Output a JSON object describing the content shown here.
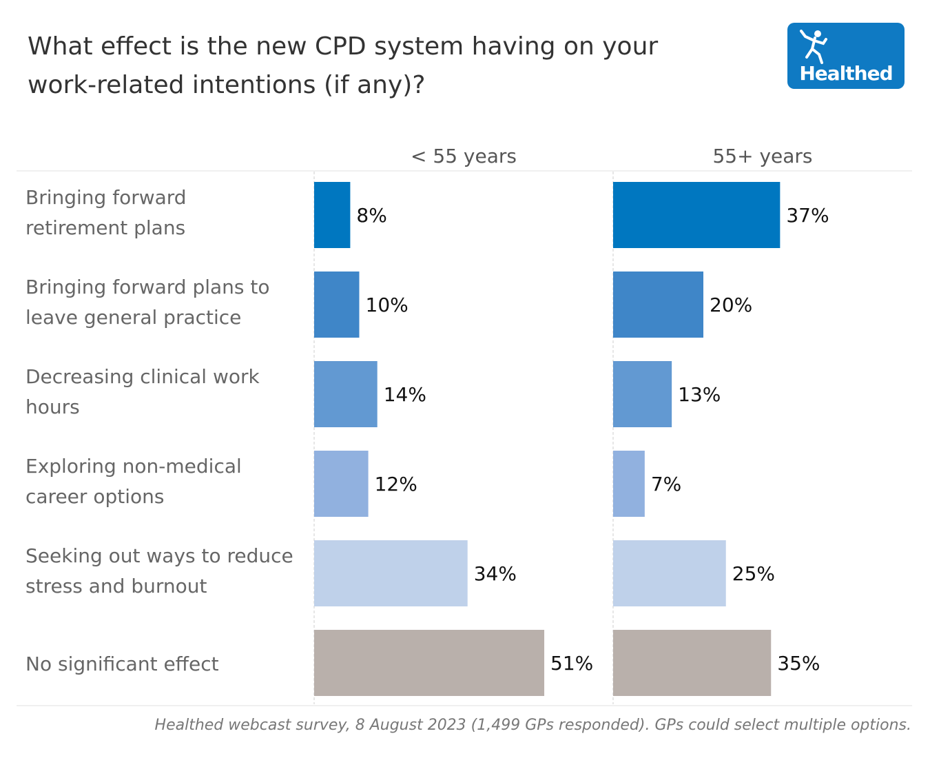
{
  "title": "What effect is the new CPD system having on your work-related intentions (if any)?",
  "logo": {
    "text": "Healthed",
    "color": "#0f7ac3"
  },
  "footer": "Healthed webcast survey, 8 August 2023 (1,499 GPs responded). GPs could select multiple options.",
  "chart_data": {
    "type": "bar",
    "orientation": "horizontal",
    "title": "What effect is the new CPD system having on your work-related intentions (if any)?",
    "categories": [
      "Bringing forward retirement plans",
      "Bringing forward plans to leave general practice",
      "Decreasing clinical work hours",
      "Exploring non-medical career options",
      "Seeking out ways to reduce stress and burnout",
      "No significant effect"
    ],
    "category_lines": [
      [
        "Bringing forward",
        "retirement plans"
      ],
      [
        "Bringing forward plans to",
        "leave general practice"
      ],
      [
        "Decreasing clinical work",
        "hours"
      ],
      [
        "Exploring non-medical",
        "career options"
      ],
      [
        "Seeking out ways to reduce",
        "stress and burnout"
      ],
      [
        "No significant effect"
      ]
    ],
    "series": [
      {
        "name": "< 55 years",
        "values": [
          8,
          10,
          14,
          12,
          34,
          51
        ]
      },
      {
        "name": "55+ years",
        "values": [
          37,
          20,
          13,
          7,
          25,
          35
        ]
      }
    ],
    "value_labels": {
      "< 55 years": [
        "8%",
        "10%",
        "14%",
        "12%",
        "34%",
        "51%"
      ],
      "55+ years": [
        "37%",
        "20%",
        "13%",
        "7%",
        "25%",
        "35%"
      ]
    },
    "colors": [
      "#0077c0",
      "#3f86c8",
      "#6299d2",
      "#91b1df",
      "#bfd1ea",
      "#b9b0ab"
    ],
    "unit": "%",
    "xlim": [
      0,
      66
    ],
    "grid": false,
    "legend": "none"
  }
}
